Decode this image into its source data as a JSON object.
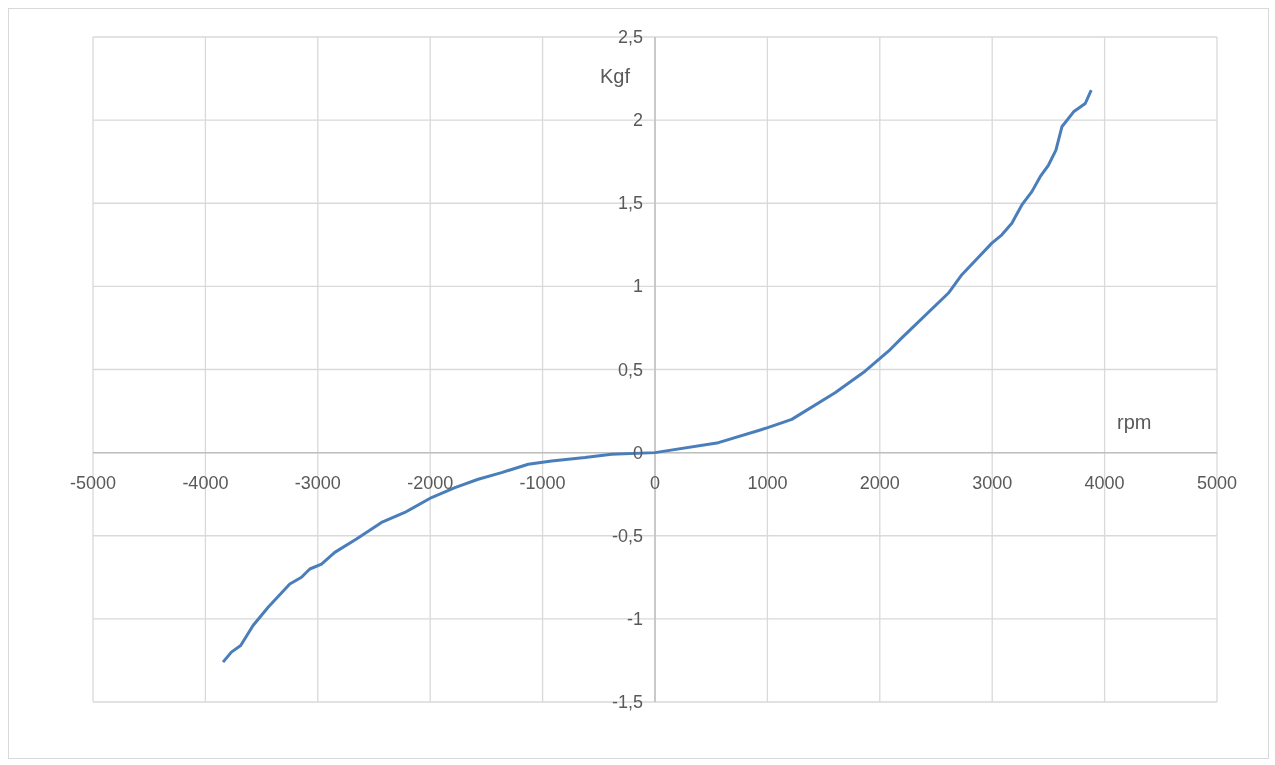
{
  "chart_data": {
    "type": "line",
    "xlabel": "rpm",
    "ylabel": "Kgf",
    "x": [
      -3843,
      -3769,
      -3686,
      -3576,
      -3442,
      -3249,
      -3145,
      -3071,
      -2967,
      -2849,
      -2656,
      -2433,
      -2226,
      -1988,
      -1780,
      -1573,
      -1365,
      -1128,
      -920,
      -623,
      -386,
      0,
      564,
      1003,
      1217,
      1602,
      1869,
      2077,
      2196,
      2611,
      2730,
      2997,
      3086,
      3175,
      3264,
      3353,
      3427,
      3501,
      3567,
      3620,
      3724,
      3828,
      3881
    ],
    "series": [
      {
        "color": "#4a7ebb",
        "values": [
          -1.26,
          -1.2,
          -1.16,
          -1.04,
          -0.93,
          -0.79,
          -0.75,
          -0.7,
          -0.67,
          -0.6,
          -0.52,
          -0.42,
          -0.36,
          -0.27,
          -0.21,
          -0.16,
          -0.12,
          -0.07,
          -0.05,
          -0.03,
          -0.01,
          0,
          0.06,
          0.15,
          0.2,
          0.36,
          0.49,
          0.61,
          0.69,
          0.96,
          1.07,
          1.26,
          1.31,
          1.38,
          1.49,
          1.57,
          1.66,
          1.73,
          1.82,
          1.96,
          2.05,
          2.1,
          2.18
        ]
      }
    ],
    "xlim": [
      -5000,
      5000
    ],
    "xticks": [
      -5000,
      -4000,
      -3000,
      -2000,
      -1000,
      0,
      1000,
      2000,
      3000,
      4000,
      5000
    ],
    "ylim": [
      -1.5,
      2.5
    ],
    "yticks": [
      {
        "value": -1.5,
        "label": "-1,5"
      },
      {
        "value": -1,
        "label": "-1"
      },
      {
        "value": -0.5,
        "label": "-0,5"
      },
      {
        "value": 0,
        "label": "0"
      },
      {
        "value": 0.5,
        "label": "0,5"
      },
      {
        "value": 1,
        "label": "1"
      },
      {
        "value": 1.5,
        "label": "1,5"
      },
      {
        "value": 2,
        "label": "2"
      },
      {
        "value": 2.5,
        "label": "2,5"
      }
    ],
    "grid": true,
    "marker": "none",
    "line_style": "solid",
    "legend": false
  }
}
